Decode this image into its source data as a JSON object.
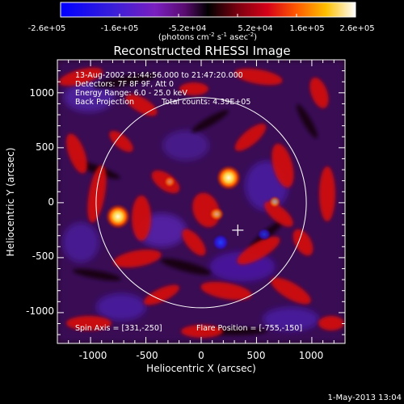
{
  "colorbar": {
    "ticks": [
      "-2.6e+05",
      "-1.6e+05",
      "-5.2e+04",
      "5.2e+04",
      "1.6e+05",
      "2.6e+05"
    ],
    "units_prefix": "(photons cm",
    "units_exp1": "-2",
    "units_mid": " s",
    "units_exp2": "-1",
    "units_mid2": " asec",
    "units_exp3": "-2",
    "units_suffix": ")"
  },
  "title": "Reconstructed RHESSI Image",
  "info": {
    "line1": "13-Aug-2002 21:44:56.000 to 21:47:20.000",
    "line2": "Detectors: 7F 8F 9F, Att 0",
    "line3": "Energy Range: 6.0 - 25.0 keV",
    "line4a": "Back Projection",
    "line4b": "Total counts: 4.39E+05",
    "spin_axis": "Spin Axis = [331,-250]",
    "flare_position": "Flare Position = [-755,-150]"
  },
  "axes": {
    "xlabel": "Heliocentric X (arcsec)",
    "ylabel": "Heliocentric Y (arcsec)",
    "xticks": [
      "-1000",
      "-500",
      "0",
      "500",
      "1000"
    ],
    "yticks": [
      "1000",
      "500",
      "0",
      "-500",
      "-1000"
    ],
    "xlim": [
      -1300,
      1300
    ],
    "ylim": [
      -1280,
      1300
    ]
  },
  "markers": {
    "solar_limb_radius_arcsec": 950,
    "spin_axis_x": 331,
    "spin_axis_y": -250
  },
  "colors": {
    "background": "#000000",
    "foreground": "#ffffff"
  },
  "footer": {
    "timestamp": "1-May-2013 13:04"
  }
}
